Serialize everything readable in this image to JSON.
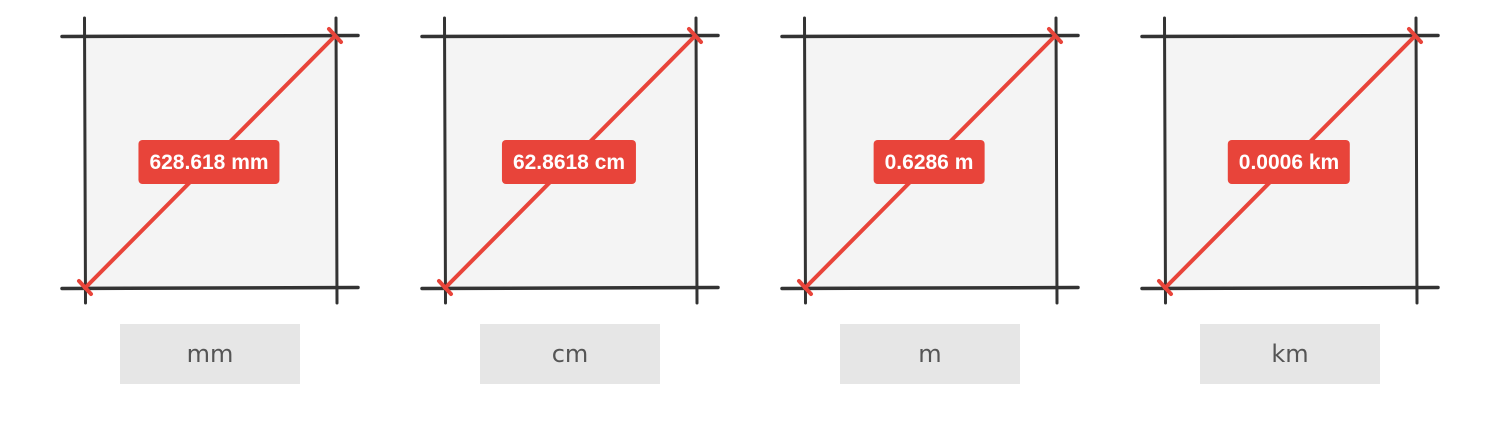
{
  "panels": [
    {
      "measurement": "628.618 mm",
      "unit_label": "mm"
    },
    {
      "measurement": "62.8618 cm",
      "unit_label": "cm"
    },
    {
      "measurement": "0.6286 m",
      "unit_label": "m"
    },
    {
      "measurement": "0.0006 km",
      "unit_label": "km"
    }
  ],
  "colors": {
    "square_fill": "#f4f4f4",
    "square_stroke": "#333333",
    "accent": "#e8443a",
    "button_bg": "#e6e6e6",
    "button_text": "#555555"
  }
}
